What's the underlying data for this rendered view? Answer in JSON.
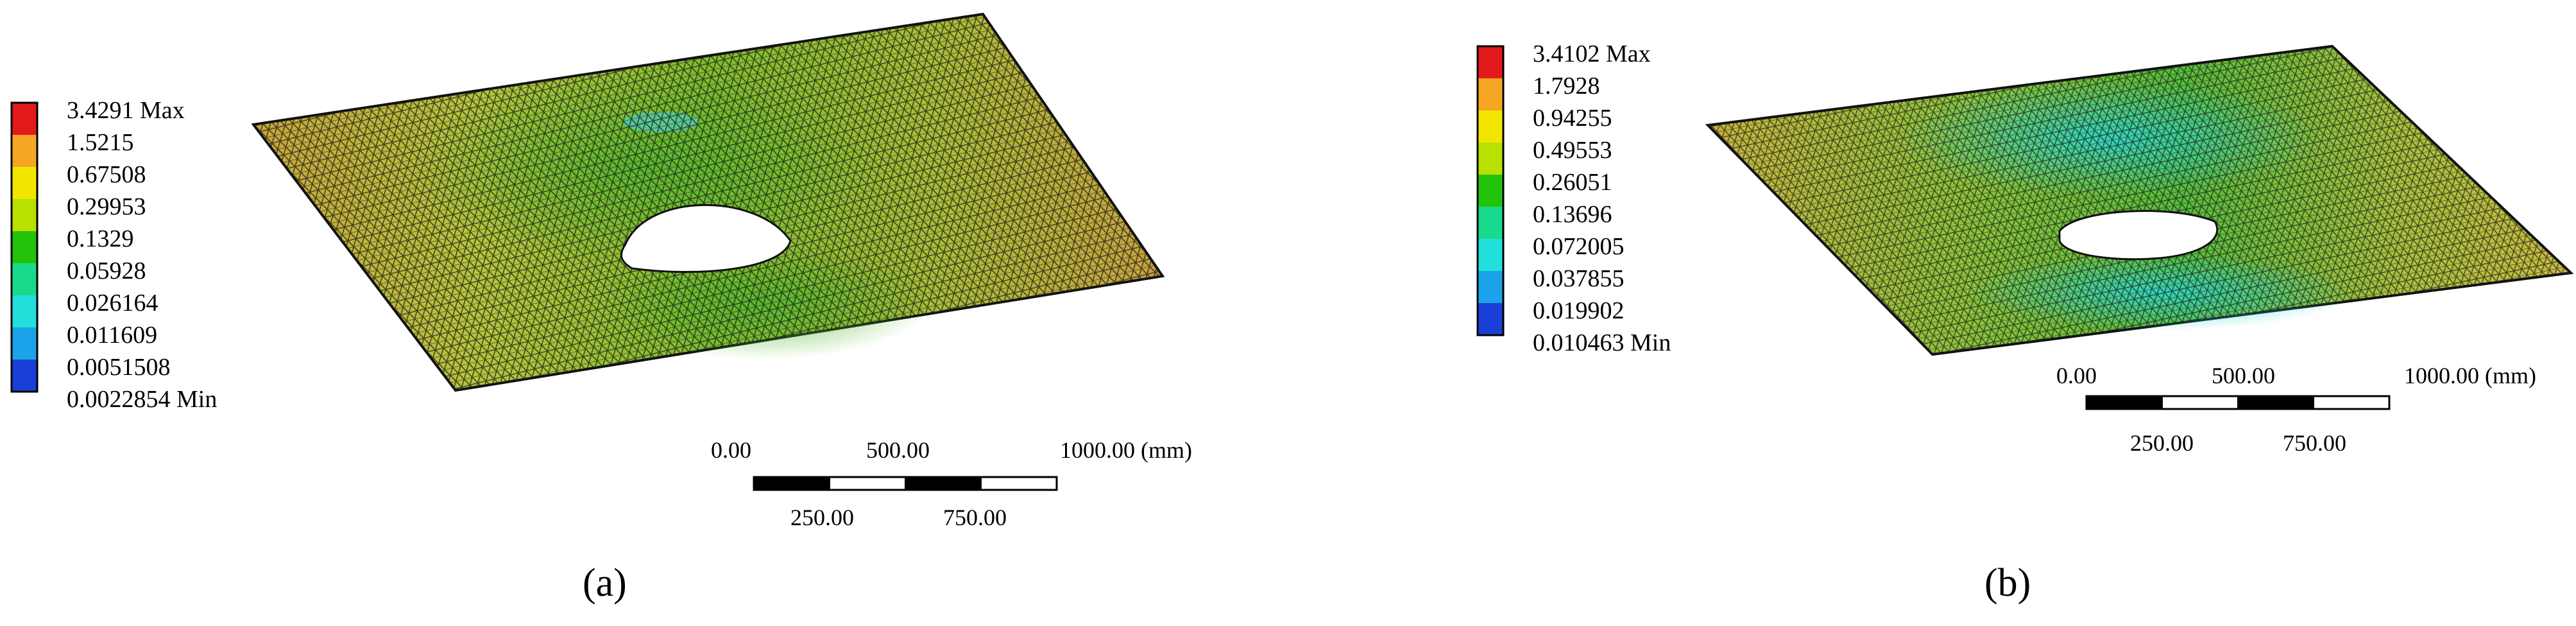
{
  "panels": [
    {
      "id": "a",
      "caption": "(a)",
      "legend": {
        "values": [
          "3.4291 Max",
          "1.5215",
          "0.67508",
          "0.29953",
          "0.1329",
          "0.05928",
          "0.026164",
          "0.011609",
          "0.0051508",
          "0.0022854 Min"
        ],
        "colors": [
          "#e31a1c",
          "#f5a623",
          "#f2e600",
          "#b8e000",
          "#22c30a",
          "#18d98c",
          "#22e0dc",
          "#1aa3e8",
          "#1a3fd6"
        ]
      },
      "scale_bar": {
        "top_labels": [
          "0.00",
          "500.00",
          "1000.00 (mm)"
        ],
        "bottom_labels": [
          "250.00",
          "750.00"
        ]
      }
    },
    {
      "id": "b",
      "caption": "(b)",
      "legend": {
        "values": [
          "3.4102 Max",
          "1.7928",
          "0.94255",
          "0.49553",
          "0.26051",
          "0.13696",
          "0.072005",
          "0.037855",
          "0.019902",
          "0.010463 Min"
        ],
        "colors": [
          "#e31a1c",
          "#f5a623",
          "#f2e600",
          "#b8e000",
          "#22c30a",
          "#18d98c",
          "#22e0dc",
          "#1aa3e8",
          "#1a3fd6"
        ]
      },
      "scale_bar": {
        "top_labels": [
          "0.00",
          "500.00",
          "1000.00 (mm)"
        ],
        "bottom_labels": [
          "250.00",
          "750.00"
        ]
      }
    }
  ]
}
